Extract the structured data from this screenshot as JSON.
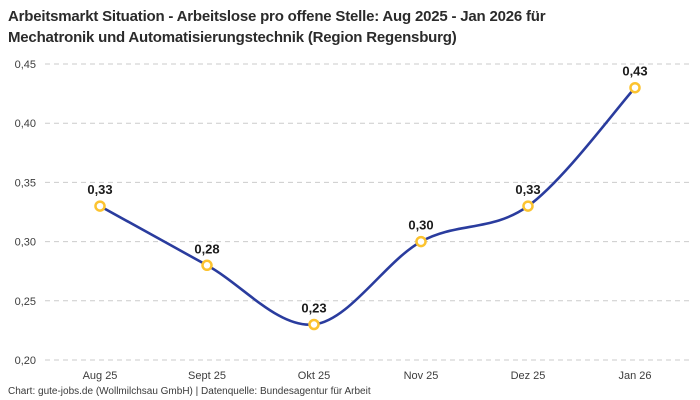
{
  "header": {
    "title_line1": "Arbeitsmarkt Situation - Arbeitslose pro offene Stelle: Aug 2025 - Jan 2026 für",
    "title_line2": "Mechatronik und Automatisierungstechnik (Region Regensburg)"
  },
  "footer": {
    "attribution": "Chart: gute-jobs.de (Wollmilchsau GmbH) | Datenquelle: Bundesagentur für Arbeit"
  },
  "chart_data": {
    "type": "line",
    "title": "Arbeitsmarkt Situation - Arbeitslose pro offene Stelle: Aug 2025 - Jan 2026 für Mechatronik und Automatisierungstechnik (Region Regensburg)",
    "categories": [
      "Aug 25",
      "Sept 25",
      "Okt 25",
      "Nov 25",
      "Dez 25",
      "Jan 26"
    ],
    "values": [
      0.33,
      0.28,
      0.23,
      0.3,
      0.33,
      0.43
    ],
    "point_labels": [
      "0,33",
      "0,28",
      "0,23",
      "0,30",
      "0,33",
      "0,43"
    ],
    "xlabel": "",
    "ylabel": "",
    "ylim": [
      0.2,
      0.45
    ],
    "ytick_step": 0.05,
    "ytick_labels": [
      "0,20",
      "0,25",
      "0,30",
      "0,35",
      "0,40",
      "0,45"
    ],
    "grid": "horizontal-dashed",
    "legend": "none",
    "line_shape": "smooth",
    "colors": {
      "line": "#2a3c9e",
      "marker_ring": "#fcc32f",
      "marker_fill": "#ffffff",
      "gridline": "#cbcbcb",
      "tick_text": "#3d3d3d",
      "label_text": "#1b1b1b"
    }
  }
}
